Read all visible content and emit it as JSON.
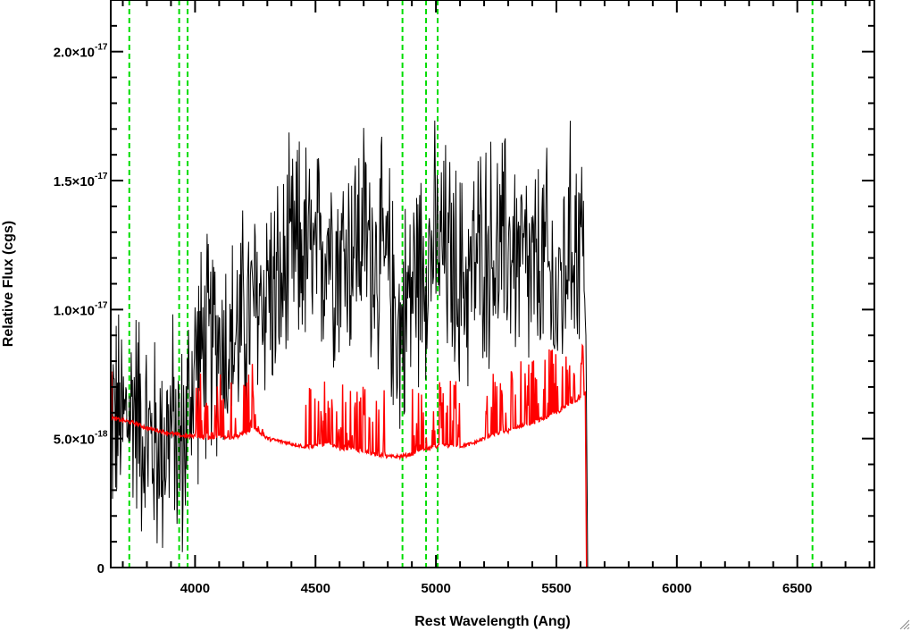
{
  "chart_data": {
    "type": "line",
    "title": "",
    "xlabel": "Rest Wavelength (Ang)",
    "ylabel": "Relative Flux (cgs)",
    "xlim": [
      3650,
      6820
    ],
    "ylim": [
      0,
      2.2e-17
    ],
    "grid": false,
    "legend": "none",
    "x_ticks": [
      {
        "value": 4000,
        "label": "4000"
      },
      {
        "value": 4500,
        "label": "4500"
      },
      {
        "value": 5000,
        "label": "5000"
      },
      {
        "value": 5500,
        "label": "5500"
      },
      {
        "value": 6000,
        "label": "6000"
      },
      {
        "value": 6500,
        "label": "6500"
      }
    ],
    "y_ticks": [
      {
        "value": 0,
        "mantissa": "0",
        "exponent": ""
      },
      {
        "value": 5e-18,
        "mantissa": "5.0×10",
        "exponent": "-18"
      },
      {
        "value": 1e-17,
        "mantissa": "1.0×10",
        "exponent": "-17"
      },
      {
        "value": 1.5e-17,
        "mantissa": "1.5×10",
        "exponent": "-17"
      },
      {
        "value": 2e-17,
        "mantissa": "2.0×10",
        "exponent": "-17"
      }
    ],
    "x_minor_step": 100,
    "y_minor_step": 1e-18,
    "reference_lines": [
      {
        "x": 3727,
        "color": "#00dd00",
        "style": "dashed"
      },
      {
        "x": 3934,
        "color": "#00dd00",
        "style": "dashed"
      },
      {
        "x": 3969,
        "color": "#00dd00",
        "style": "dashed"
      },
      {
        "x": 4861,
        "color": "#00dd00",
        "style": "dashed"
      },
      {
        "x": 4959,
        "color": "#00dd00",
        "style": "dashed"
      },
      {
        "x": 5007,
        "color": "#00dd00",
        "style": "dashed"
      },
      {
        "x": 6563,
        "color": "#00dd00",
        "style": "dashed"
      }
    ],
    "series": [
      {
        "color": "#000000",
        "x": [
          3650,
          3700,
          3750,
          3800,
          3850,
          3900,
          3950,
          4000,
          4050,
          4100,
          4150,
          4200,
          4250,
          4300,
          4350,
          4400,
          4450,
          4500,
          4550,
          4600,
          4650,
          4700,
          4750,
          4800,
          4850,
          4900,
          4950,
          5000,
          5050,
          5100,
          5150,
          5200,
          5250,
          5300,
          5350,
          5400,
          5450,
          5500,
          5550,
          5600,
          5620,
          5630,
          6820
        ],
        "y": [
          6e-18,
          5.5e-18,
          6.5e-18,
          5e-18,
          4.5e-18,
          5.5e-18,
          4.5e-18,
          8e-18,
          8.5e-18,
          9e-18,
          8.5e-18,
          9.5e-18,
          1e-17,
          1.1e-17,
          1.05e-17,
          1.2e-17,
          1.25e-17,
          1.15e-17,
          1.3e-17,
          1.2e-17,
          1.25e-17,
          1.3e-17,
          1.2e-17,
          1.15e-17,
          9e-18,
          1.1e-17,
          1.2e-17,
          1.25e-17,
          1.2e-17,
          1.1e-17,
          1.15e-17,
          1.25e-17,
          1.2e-17,
          1.25e-17,
          1.2e-17,
          1.1e-17,
          1.2e-17,
          1e-17,
          1.25e-17,
          1.3e-17,
          1.2e-17,
          0,
          0
        ],
        "noise": 4.5e-18
      },
      {
        "color": "#ff0000",
        "x": [
          3650,
          3700,
          3750,
          3800,
          3850,
          3900,
          3950,
          4000,
          4050,
          4100,
          4150,
          4200,
          4250,
          4300,
          4350,
          4400,
          4450,
          4500,
          4550,
          4600,
          4650,
          4700,
          4750,
          4800,
          4850,
          4900,
          4950,
          5000,
          5050,
          5100,
          5150,
          5200,
          5250,
          5300,
          5350,
          5400,
          5450,
          5500,
          5550,
          5600,
          5620,
          5625,
          6820
        ],
        "y": [
          5.8e-18,
          5.7e-18,
          5.6e-18,
          5.4e-18,
          5.3e-18,
          5.2e-18,
          5.1e-18,
          5.1e-18,
          5e-18,
          5.1e-18,
          5e-18,
          5.2e-18,
          5.4e-18,
          5e-18,
          4.9e-18,
          4.8e-18,
          4.7e-18,
          4.7e-18,
          4.8e-18,
          4.6e-18,
          4.6e-18,
          4.5e-18,
          4.4e-18,
          4.3e-18,
          4.3e-18,
          4.4e-18,
          4.6e-18,
          4.7e-18,
          4.7e-18,
          4.7e-18,
          4.8e-18,
          5e-18,
          5.2e-18,
          5.3e-18,
          5.5e-18,
          5.6e-18,
          5.8e-18,
          6e-18,
          6.3e-18,
          6.6e-18,
          6.8e-18,
          0,
          0
        ],
        "noise": 5e-19
      }
    ]
  }
}
